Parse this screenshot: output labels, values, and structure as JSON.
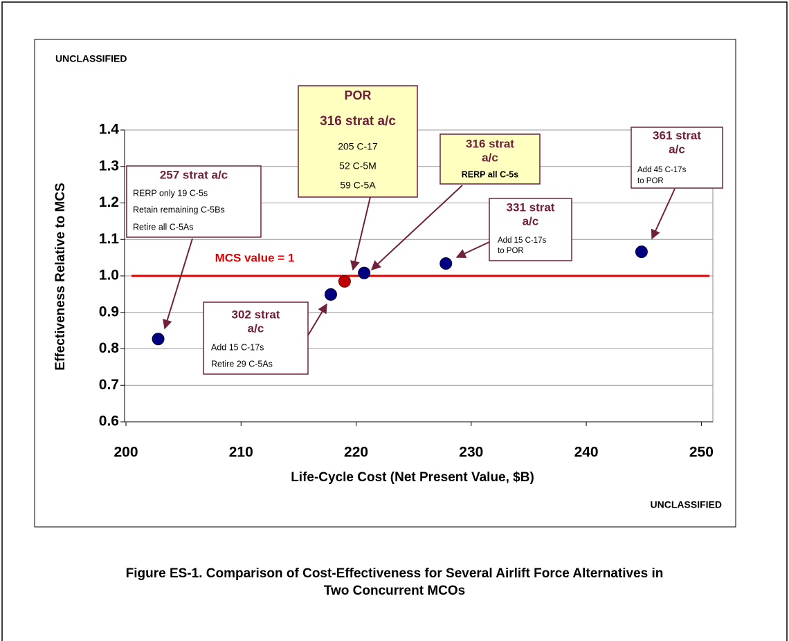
{
  "chart_data": {
    "type": "scatter",
    "marking_top": "UNCLASSIFIED",
    "marking_bottom": "UNCLASSIFIED",
    "x_label": "Life-Cycle Cost (Net Present Value, $B)",
    "y_label": "Effectiveness Relative to MCS",
    "x": [
      202.8,
      217.8,
      219.0,
      220.7,
      227.8,
      244.8
    ],
    "values": [
      0.827,
      0.949,
      0.985,
      1.008,
      1.034,
      1.066
    ],
    "colors": [
      "#000080",
      "#000080",
      "#c00000",
      "#000080",
      "#000080",
      "#000080"
    ],
    "xlim": [
      200,
      251
    ],
    "xticks": [
      200,
      210,
      220,
      230,
      240,
      250
    ],
    "ylim": [
      0.6,
      1.4
    ],
    "yticks": [
      0.6,
      0.7,
      0.8,
      0.9,
      {
        "value": 1,
        "label": "1.0"
      },
      1.1,
      1.2,
      1.3,
      1.4
    ],
    "grid": true,
    "reference_line": {
      "value": 1,
      "label": "MCS value = 1",
      "color": "#e00000"
    },
    "annotations": [
      {
        "heading": [
          "257 strat  a/c"
        ],
        "text": [
          "RERP only 19 C-5s",
          "Retain remaining C-5Bs",
          "Retire all C-5As"
        ],
        "fill": "#ffffff"
      },
      {
        "heading": [
          "POR",
          "316 strat  a/c"
        ],
        "text": [
          "205 C-17",
          "52 C-5M",
          "59 C-5A"
        ],
        "fill": "#ffffc0"
      },
      {
        "heading": [
          "316 strat",
          "a/c"
        ],
        "text": [
          "RERP all C-5s"
        ],
        "fill": "#ffffc0"
      },
      {
        "heading": [
          "331 strat",
          "a/c"
        ],
        "text": [
          "Add 15 C-17s",
          "to POR"
        ],
        "fill": "#ffffff"
      },
      {
        "heading": [
          "361 strat",
          "a/c"
        ],
        "text": [
          "Add 45 C-17s",
          "to POR"
        ],
        "fill": "#ffffff"
      },
      {
        "heading": [
          "302 strat",
          "a/c"
        ],
        "text": [
          "Add 15 C-17s",
          "Retire 29 C-5As"
        ],
        "fill": "#ffffff"
      }
    ]
  },
  "caption": [
    "Figure ES-1.  Comparison of Cost-Effectiveness for Several Airlift Force Alternatives in",
    "Two Concurrent MCOs"
  ]
}
